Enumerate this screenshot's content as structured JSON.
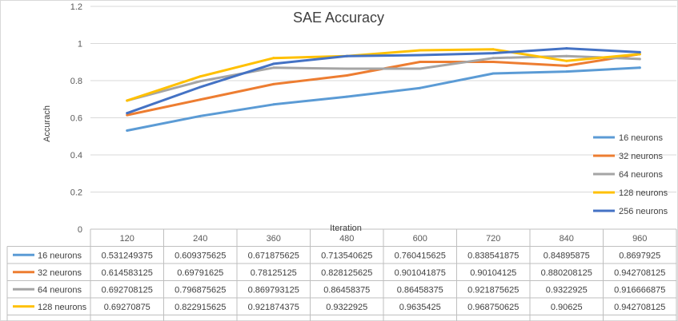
{
  "chart_data": {
    "type": "line",
    "title": "SAE Accuracy",
    "xlabel": "Iteration",
    "ylabel": "Accurach",
    "categories": [
      "120",
      "240",
      "360",
      "480",
      "600",
      "720",
      "840",
      "960"
    ],
    "ylim": [
      0,
      1.2
    ],
    "yticks": [
      "0",
      "0.2",
      "0.4",
      "0.6",
      "0.8",
      "1",
      "1.2"
    ],
    "grid": true,
    "legend_position": "right",
    "has_data_table": true,
    "series": [
      {
        "name": "16 neurons",
        "color": "#5b9bd5",
        "values": [
          0.531249375,
          0.609375625,
          0.671875625,
          0.713540625,
          0.760415625,
          0.838541875,
          0.84895875,
          0.8697925
        ],
        "labels": [
          "0.531249375",
          "0.609375625",
          "0.671875625",
          "0.713540625",
          "0.760415625",
          "0.838541875",
          "0.84895875",
          "0.8697925"
        ]
      },
      {
        "name": "32 neurons",
        "color": "#ed7d31",
        "values": [
          0.614583125,
          0.69791625,
          0.78125125,
          0.828125625,
          0.901041875,
          0.90104125,
          0.880208125,
          0.942708125
        ],
        "labels": [
          "0.614583125",
          "0.69791625",
          "0.78125125",
          "0.828125625",
          "0.901041875",
          "0.90104125",
          "0.880208125",
          "0.942708125"
        ]
      },
      {
        "name": "64 neurons",
        "color": "#a5a5a5",
        "values": [
          0.692708125,
          0.796875625,
          0.869793125,
          0.86458375,
          0.86458375,
          0.921875625,
          0.9322925,
          0.916666875
        ],
        "labels": [
          "0.692708125",
          "0.796875625",
          "0.869793125",
          "0.86458375",
          "0.86458375",
          "0.921875625",
          "0.9322925",
          "0.916666875"
        ]
      },
      {
        "name": "128 neurons",
        "color": "#ffc000",
        "values": [
          0.69270875,
          0.822915625,
          0.921874375,
          0.9322925,
          0.9635425,
          0.968750625,
          0.90625,
          0.942708125
        ],
        "labels": [
          "0.69270875",
          "0.822915625",
          "0.921874375",
          "0.9322925",
          "0.9635425",
          "0.968750625",
          "0.90625",
          "0.942708125"
        ]
      },
      {
        "name": "256 neurons",
        "color": "#4472c4",
        "values": [
          0.625000625,
          0.765625,
          0.890625,
          0.932291875,
          0.93750125,
          0.947916875,
          0.973959375,
          0.95312625
        ],
        "labels": [
          "0.625000625",
          "0.765625",
          "0.890625",
          "0.932291875",
          "0.93750125",
          "0.947916875",
          "0.973959375",
          "0.95312625"
        ]
      }
    ]
  }
}
